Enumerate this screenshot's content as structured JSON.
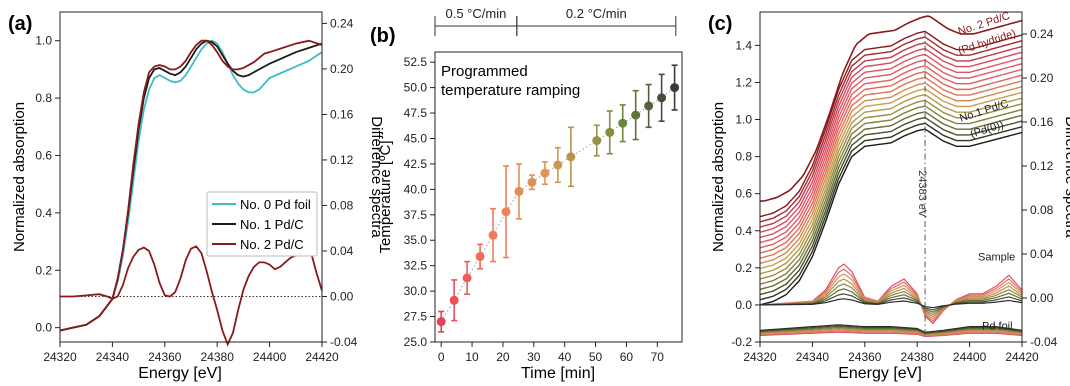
{
  "chart_data": [
    {
      "type": "line",
      "panel_label": "(a)",
      "xlabel": "Energy [eV]",
      "ylabel": "Normalized absorption",
      "y2label": "Difference spectra",
      "xlim": [
        24320,
        24420
      ],
      "ylim": [
        -0.05,
        1.1
      ],
      "y2lim": [
        -0.04,
        0.25
      ],
      "xticks": [
        "24320",
        "24340",
        "24360",
        "24380",
        "24400",
        "24420"
      ],
      "yticks": [
        "0.0",
        "0.2",
        "0.4",
        "0.6",
        "0.8",
        "1.0"
      ],
      "y2ticks": [
        "-0.04",
        "0.00",
        "0.04",
        "0.08",
        "0.12",
        "0.16",
        "0.20",
        "0.24"
      ],
      "legend_position": "right",
      "series": [
        {
          "name": "No. 0  Pd foil",
          "color": "#3fbcc4",
          "x": [
            24320,
            24325,
            24330,
            24335,
            24340,
            24342,
            24344,
            24346,
            24348,
            24350,
            24352,
            24354,
            24356,
            24358,
            24360,
            24362,
            24364,
            24366,
            24368,
            24370,
            24372,
            24374,
            24376,
            24378,
            24380,
            24382,
            24384,
            24386,
            24388,
            24390,
            24392,
            24394,
            24396,
            24398,
            24400,
            24405,
            24410,
            24415,
            24420
          ],
          "values": [
            -0.01,
            0.0,
            0.01,
            0.04,
            0.1,
            0.16,
            0.25,
            0.37,
            0.51,
            0.65,
            0.76,
            0.83,
            0.87,
            0.88,
            0.87,
            0.86,
            0.855,
            0.86,
            0.88,
            0.91,
            0.94,
            0.97,
            0.99,
            1.0,
            0.99,
            0.96,
            0.92,
            0.88,
            0.85,
            0.83,
            0.82,
            0.82,
            0.83,
            0.85,
            0.87,
            0.89,
            0.91,
            0.93,
            0.96
          ]
        },
        {
          "name": "No. 1  Pd/C",
          "color": "#1a1a1a",
          "x": [
            24320,
            24325,
            24330,
            24335,
            24340,
            24342,
            24344,
            24346,
            24348,
            24350,
            24352,
            24354,
            24356,
            24358,
            24360,
            24362,
            24364,
            24366,
            24368,
            24370,
            24372,
            24374,
            24376,
            24378,
            24380,
            24382,
            24384,
            24386,
            24388,
            24390,
            24392,
            24394,
            24396,
            24398,
            24400,
            24405,
            24410,
            24415,
            24420
          ],
          "values": [
            -0.01,
            0.0,
            0.01,
            0.04,
            0.1,
            0.17,
            0.27,
            0.4,
            0.55,
            0.69,
            0.8,
            0.87,
            0.9,
            0.905,
            0.895,
            0.885,
            0.88,
            0.89,
            0.91,
            0.94,
            0.97,
            0.99,
            1.0,
            0.995,
            0.98,
            0.95,
            0.92,
            0.895,
            0.88,
            0.875,
            0.88,
            0.89,
            0.9,
            0.91,
            0.92,
            0.94,
            0.96,
            0.975,
            0.99
          ]
        },
        {
          "name": "No. 2  Pd/C",
          "color": "#8b1a1a",
          "x": [
            24320,
            24325,
            24330,
            24335,
            24340,
            24342,
            24344,
            24346,
            24348,
            24350,
            24352,
            24354,
            24356,
            24358,
            24360,
            24362,
            24364,
            24366,
            24368,
            24370,
            24372,
            24374,
            24376,
            24378,
            24380,
            24382,
            24384,
            24386,
            24388,
            24390,
            24392,
            24394,
            24396,
            24398,
            24400,
            24405,
            24410,
            24415,
            24420
          ],
          "values": [
            -0.01,
            0.0,
            0.01,
            0.04,
            0.1,
            0.17,
            0.27,
            0.41,
            0.57,
            0.71,
            0.82,
            0.89,
            0.91,
            0.915,
            0.91,
            0.9,
            0.9,
            0.91,
            0.93,
            0.96,
            0.985,
            1.0,
            1.0,
            0.985,
            0.96,
            0.93,
            0.91,
            0.9,
            0.9,
            0.905,
            0.915,
            0.925,
            0.94,
            0.955,
            0.96,
            0.975,
            0.99,
            1.0,
            0.985
          ]
        }
      ],
      "difference_series": {
        "color": "#8b1a1a",
        "axis": "right",
        "x": [
          24320,
          24325,
          24330,
          24335,
          24338,
          24340,
          24342,
          24344,
          24346,
          24348,
          24350,
          24352,
          24354,
          24356,
          24358,
          24360,
          24362,
          24364,
          24366,
          24368,
          24370,
          24372,
          24374,
          24376,
          24378,
          24380,
          24382,
          24384,
          24386,
          24388,
          24390,
          24392,
          24394,
          24396,
          24398,
          24400,
          24402,
          24404,
          24406,
          24408,
          24410,
          24412,
          24414,
          24416,
          24418,
          24420
        ],
        "values": [
          0.0,
          0.0,
          0.001,
          0.002,
          0.0,
          -0.002,
          0.0,
          0.01,
          0.025,
          0.035,
          0.041,
          0.043,
          0.04,
          0.028,
          0.012,
          0.001,
          0.0,
          0.004,
          0.016,
          0.032,
          0.042,
          0.044,
          0.038,
          0.022,
          0.004,
          -0.012,
          -0.03,
          -0.042,
          -0.032,
          -0.012,
          0.006,
          0.018,
          0.026,
          0.03,
          0.03,
          0.028,
          0.024,
          0.026,
          0.03,
          0.034,
          0.036,
          0.04,
          0.044,
          0.037,
          0.02,
          0.005
        ]
      },
      "baseline": 0.0
    },
    {
      "type": "scatter",
      "panel_label": "(b)",
      "xlabel": "Time [min]",
      "ylabel": "Temperature [ºC]",
      "xlim": [
        -2,
        78
      ],
      "ylim": [
        25.0,
        53.5
      ],
      "xticks": [
        "0",
        "10",
        "20",
        "30",
        "40",
        "50",
        "60",
        "70"
      ],
      "yticks": [
        "25.0",
        "27.5",
        "30.0",
        "32.5",
        "35.0",
        "37.5",
        "40.0",
        "42.5",
        "45.0",
        "47.5",
        "50.0",
        "52.5"
      ],
      "annotation": "Programmed\ntemperature ramping",
      "ramp_segments": [
        {
          "label": "0.5 °C/min",
          "x_start": -2,
          "x_end": 24.5
        },
        {
          "label": "0.2 °C/min",
          "x_start": 24.5,
          "x_end": 76
        }
      ],
      "points": [
        {
          "x": 0.0,
          "y": 27.0,
          "err": 1.0
        },
        {
          "x": 4.2,
          "y": 29.1,
          "err": 2.0
        },
        {
          "x": 8.4,
          "y": 31.3,
          "err": 1.6
        },
        {
          "x": 12.6,
          "y": 33.4,
          "err": 1.2
        },
        {
          "x": 16.8,
          "y": 35.5,
          "err": 2.6
        },
        {
          "x": 21.0,
          "y": 37.8,
          "err": 4.5
        },
        {
          "x": 25.2,
          "y": 39.8,
          "err": 2.7
        },
        {
          "x": 29.4,
          "y": 40.7,
          "err": 0.7
        },
        {
          "x": 33.6,
          "y": 41.6,
          "err": 1.1
        },
        {
          "x": 37.8,
          "y": 42.4,
          "err": 1.7
        },
        {
          "x": 42.0,
          "y": 43.2,
          "err": 2.9
        },
        {
          "x": 50.4,
          "y": 44.8,
          "err": 1.5
        },
        {
          "x": 54.6,
          "y": 45.6,
          "err": 2.1
        },
        {
          "x": 58.8,
          "y": 46.5,
          "err": 1.8
        },
        {
          "x": 63.0,
          "y": 47.3,
          "err": 2.4
        },
        {
          "x": 67.2,
          "y": 48.2,
          "err": 2.1
        },
        {
          "x": 71.4,
          "y": 49.0,
          "err": 2.3
        },
        {
          "x": 75.6,
          "y": 50.0,
          "err": 2.2
        }
      ],
      "color_gradient": [
        "#e8405a",
        "#f07f5a",
        "#d99955",
        "#6f8c3a",
        "#3a3a3a"
      ]
    },
    {
      "type": "line",
      "panel_label": "(c)",
      "xlabel": "Energy [eV]",
      "ylabel": "Normalized absorption",
      "y2label": "Difference spectra",
      "xlim": [
        24320,
        24420
      ],
      "ylim": [
        -0.2,
        1.58
      ],
      "y2lim": [
        -0.04,
        0.26
      ],
      "xticks": [
        "24320",
        "24340",
        "24360",
        "24380",
        "24400",
        "24420"
      ],
      "yticks": [
        "-0.2",
        "0.0",
        "0.2",
        "0.4",
        "0.6",
        "0.8",
        "1.0",
        "1.2",
        "1.4"
      ],
      "y2ticks": [
        "-0.04",
        "0.00",
        "0.04",
        "0.08",
        "0.12",
        "0.16",
        "0.20",
        "0.24"
      ],
      "vline": {
        "x": 24383,
        "label": "24383 eV"
      },
      "labels": {
        "top_line1": "No. 2 Pd/C",
        "top_line2": "(Pd hydride)",
        "bottom_line1": "No.1 Pd/C",
        "bottom_line2": "(Pd(0))",
        "sample": "Sample",
        "foil": "Pd foil"
      },
      "stack": {
        "count": 18,
        "offset_start": 0.0,
        "offset_step": 0.028,
        "color_top": "#8b1a1a",
        "color_bottom": "#1a1a1a"
      },
      "base_spectrum": {
        "x": [
          24320,
          24325,
          24330,
          24335,
          24340,
          24345,
          24350,
          24355,
          24360,
          24365,
          24370,
          24375,
          24380,
          24383,
          24385,
          24390,
          24395,
          24400,
          24405,
          24410,
          24415,
          24420
        ],
        "values": [
          0.0,
          0.02,
          0.06,
          0.14,
          0.28,
          0.48,
          0.7,
          0.86,
          0.92,
          0.93,
          0.94,
          0.98,
          1.01,
          1.02,
          1.0,
          0.95,
          0.92,
          0.92,
          0.94,
          0.96,
          0.98,
          1.0
        ]
      },
      "diff_sample": {
        "x": [
          24320,
          24330,
          24340,
          24345,
          24350,
          24352,
          24355,
          24360,
          24365,
          24370,
          24375,
          24380,
          24383,
          24386,
          24390,
          24395,
          24400,
          24405,
          24410,
          24415,
          24420
        ],
        "values": [
          0.0,
          0.01,
          0.02,
          0.08,
          0.2,
          0.22,
          0.18,
          0.04,
          0.02,
          0.1,
          0.14,
          0.06,
          -0.06,
          -0.1,
          -0.03,
          0.03,
          0.06,
          0.06,
          0.1,
          0.16,
          0.08
        ]
      },
      "diff_foil": {
        "x": [
          24320,
          24330,
          24340,
          24350,
          24360,
          24370,
          24380,
          24383,
          24390,
          24400,
          24410,
          24420
        ],
        "values": [
          0.0,
          0.01,
          0.02,
          0.03,
          0.02,
          0.02,
          0.01,
          -0.01,
          0.0,
          0.02,
          0.02,
          0.0
        ]
      }
    }
  ]
}
